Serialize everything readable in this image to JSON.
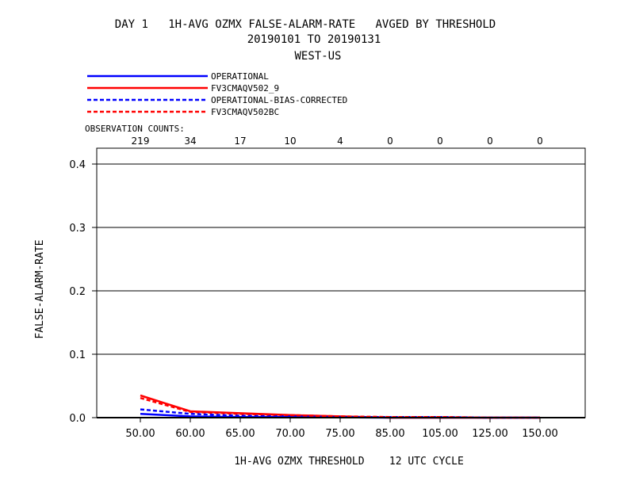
{
  "header": {
    "title_line1": "DAY 1   1H-AVG OZMX FALSE-ALARM-RATE   AVGED BY THRESHOLD",
    "title_line2": "20190101 TO 20190131",
    "title_line3": "WEST-US"
  },
  "observation_counts_label": "OBSERVATION COUNTS:",
  "observation_counts": [
    "219",
    "34",
    "17",
    "10",
    "4",
    "0",
    "0",
    "0",
    "0"
  ],
  "chart_data": {
    "type": "line",
    "xlabel": "1H-AVG OZMX THRESHOLD    12 UTC CYCLE",
    "ylabel": "FALSE-ALARM-RATE",
    "categories": [
      "50.00",
      "60.00",
      "65.00",
      "70.00",
      "75.00",
      "85.00",
      "105.00",
      "125.00",
      "150.00"
    ],
    "y_ticks": [
      "0.0",
      "0.1",
      "0.2",
      "0.3",
      "0.4"
    ],
    "ylim": [
      0,
      0.4
    ],
    "grid": true,
    "series": [
      {
        "name": "OPERATIONAL",
        "color": "#0000ff",
        "dash": "solid",
        "values": [
          0.006,
          0.002,
          0.001,
          0.001,
          0.0005,
          0.0,
          0.0,
          0.0,
          0.0
        ]
      },
      {
        "name": "FV3CMAQV502_9",
        "color": "#ff0000",
        "dash": "solid",
        "values": [
          0.035,
          0.01,
          0.007,
          0.004,
          0.002,
          0.0,
          0.0,
          0.0,
          0.0
        ]
      },
      {
        "name": "OPERATIONAL-BIAS-CORRECTED",
        "color": "#0000ff",
        "dash": "dashed",
        "values": [
          0.013,
          0.006,
          0.003,
          0.002,
          0.001,
          0.001,
          0.001,
          0.0,
          0.0
        ]
      },
      {
        "name": "FV3CMAQV502BC",
        "color": "#ff0000",
        "dash": "dashed",
        "values": [
          0.031,
          0.009,
          0.006,
          0.004,
          0.002,
          0.001,
          0.001,
          0.0,
          0.0
        ]
      }
    ]
  }
}
